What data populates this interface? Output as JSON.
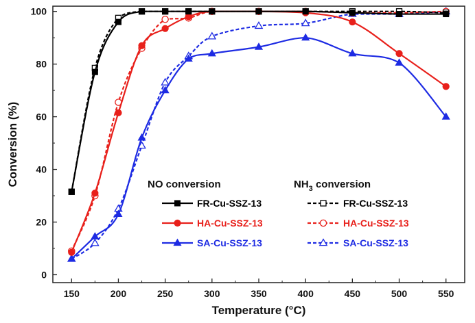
{
  "chart_data": {
    "type": "line",
    "xlabel": "Temperature (°C)",
    "ylabel": "Conversion (%)",
    "xlim": [
      130,
      570
    ],
    "ylim": [
      -3,
      102
    ],
    "xticks": [
      150,
      200,
      250,
      300,
      350,
      400,
      450,
      500,
      550
    ],
    "yticks": [
      0,
      20,
      40,
      60,
      80,
      100
    ],
    "grid": false,
    "legend": {
      "placement": "bottom-right",
      "group_titles": {
        "no": "NO  conversion",
        "nh3_prefix": "NH",
        "nh3_sub": "3",
        "nh3_suffix": " conversion"
      }
    },
    "series": [
      {
        "name": "FR-Cu-SSZ-13",
        "group": "NO",
        "color": "#000000",
        "marker": "square",
        "filled": true,
        "dashed": false,
        "x": [
          150,
          175,
          200,
          225,
          250,
          275,
          300,
          350,
          400,
          450,
          500,
          550
        ],
        "values": [
          31.5,
          77,
          96,
          100,
          100,
          100,
          100,
          100,
          100,
          99.5,
          99,
          99
        ]
      },
      {
        "name": "HA-Cu-SSZ-13",
        "group": "NO",
        "color": "#e8201b",
        "marker": "circle",
        "filled": true,
        "dashed": false,
        "x": [
          150,
          175,
          200,
          225,
          250,
          275,
          300,
          350,
          400,
          450,
          500,
          550
        ],
        "values": [
          8.5,
          31,
          61.5,
          87,
          93.5,
          98,
          100,
          100,
          99.5,
          96,
          84,
          71.5
        ]
      },
      {
        "name": "SA-Cu-SSZ-13",
        "group": "NO",
        "color": "#1d2be3",
        "marker": "triangle",
        "filled": true,
        "dashed": false,
        "x": [
          150,
          175,
          200,
          225,
          250,
          275,
          300,
          350,
          400,
          450,
          500,
          550
        ],
        "values": [
          6,
          14.5,
          23,
          52,
          70,
          82,
          84,
          86.5,
          90,
          84,
          80.5,
          60
        ]
      },
      {
        "name": "FR-Cu-SSZ-13",
        "group": "NH3",
        "color": "#000000",
        "marker": "square",
        "filled": false,
        "dashed": true,
        "x": [
          150,
          175,
          200,
          225,
          250,
          275,
          300,
          350,
          400,
          450,
          500,
          550
        ],
        "values": [
          31.5,
          78.5,
          97.5,
          100,
          100,
          100,
          100,
          100,
          100,
          100,
          100,
          99.5
        ]
      },
      {
        "name": "HA-Cu-SSZ-13",
        "group": "NH3",
        "color": "#e8201b",
        "marker": "circle",
        "filled": false,
        "dashed": true,
        "x": [
          150,
          175,
          200,
          225,
          250,
          275,
          300,
          350,
          400,
          450,
          500,
          550
        ],
        "values": [
          9,
          30,
          65.5,
          86,
          97,
          97.5,
          100,
          100,
          100,
          99.5,
          99.5,
          100
        ]
      },
      {
        "name": "SA-Cu-SSZ-13",
        "group": "NH3",
        "color": "#1d2be3",
        "marker": "triangle",
        "filled": false,
        "dashed": true,
        "x": [
          150,
          175,
          200,
          225,
          250,
          275,
          300,
          350,
          400,
          450,
          500,
          550
        ],
        "values": [
          6,
          12,
          25,
          49,
          73,
          83,
          90.5,
          94.5,
          95.5,
          99,
          99,
          100
        ]
      }
    ]
  }
}
